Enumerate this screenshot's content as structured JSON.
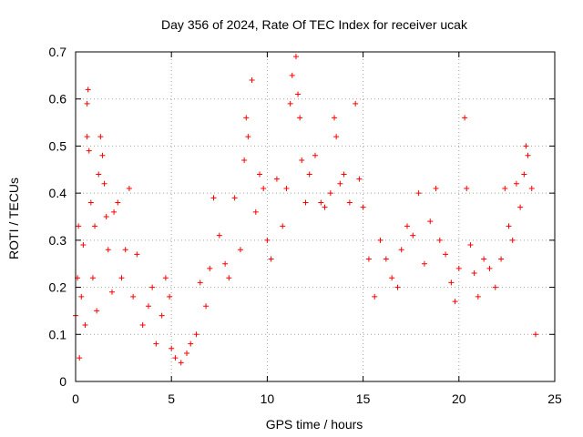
{
  "chart_data": {
    "type": "scatter",
    "title": "Day 356 of 2024, Rate Of TEC Index for receiver ucak",
    "xlabel": "GPS time / hours",
    "ylabel": "ROTI / TECUs",
    "xlim": [
      0,
      25
    ],
    "ylim": [
      0,
      0.7
    ],
    "x_ticks": [
      "0",
      "5",
      "10",
      "15",
      "20",
      "25"
    ],
    "y_ticks": [
      "0",
      "0.1",
      "0.2",
      "0.3",
      "0.4",
      "0.5",
      "0.6",
      "0.7"
    ],
    "grid": true,
    "marker": "+",
    "color": "#ff0000",
    "series": [
      {
        "points": [
          [
            0.0,
            0.14
          ],
          [
            0.1,
            0.22
          ],
          [
            0.15,
            0.33
          ],
          [
            0.2,
            0.05
          ],
          [
            0.3,
            0.18
          ],
          [
            0.4,
            0.29
          ],
          [
            0.5,
            0.12
          ],
          [
            0.6,
            0.52
          ],
          [
            0.6,
            0.59
          ],
          [
            0.65,
            0.62
          ],
          [
            0.7,
            0.49
          ],
          [
            0.8,
            0.38
          ],
          [
            0.9,
            0.22
          ],
          [
            1.0,
            0.33
          ],
          [
            1.1,
            0.15
          ],
          [
            1.2,
            0.44
          ],
          [
            1.3,
            0.52
          ],
          [
            1.4,
            0.48
          ],
          [
            1.5,
            0.42
          ],
          [
            1.6,
            0.35
          ],
          [
            1.7,
            0.28
          ],
          [
            1.9,
            0.19
          ],
          [
            2.0,
            0.36
          ],
          [
            2.2,
            0.38
          ],
          [
            2.4,
            0.22
          ],
          [
            2.6,
            0.28
          ],
          [
            2.8,
            0.41
          ],
          [
            3.0,
            0.18
          ],
          [
            3.2,
            0.27
          ],
          [
            3.5,
            0.12
          ],
          [
            3.8,
            0.16
          ],
          [
            4.0,
            0.2
          ],
          [
            4.2,
            0.08
          ],
          [
            4.5,
            0.14
          ],
          [
            4.7,
            0.22
          ],
          [
            4.9,
            0.18
          ],
          [
            5.0,
            0.07
          ],
          [
            5.2,
            0.05
          ],
          [
            5.5,
            0.04
          ],
          [
            5.8,
            0.06
          ],
          [
            6.0,
            0.08
          ],
          [
            6.3,
            0.1
          ],
          [
            6.5,
            0.21
          ],
          [
            6.8,
            0.16
          ],
          [
            7.0,
            0.24
          ],
          [
            7.2,
            0.39
          ],
          [
            7.5,
            0.31
          ],
          [
            7.8,
            0.25
          ],
          [
            8.0,
            0.22
          ],
          [
            8.3,
            0.39
          ],
          [
            8.6,
            0.28
          ],
          [
            8.8,
            0.47
          ],
          [
            8.9,
            0.56
          ],
          [
            9.0,
            0.52
          ],
          [
            9.2,
            0.64
          ],
          [
            9.4,
            0.36
          ],
          [
            9.6,
            0.44
          ],
          [
            9.8,
            0.41
          ],
          [
            10.0,
            0.3
          ],
          [
            10.2,
            0.26
          ],
          [
            10.5,
            0.43
          ],
          [
            10.8,
            0.33
          ],
          [
            11.0,
            0.41
          ],
          [
            11.2,
            0.59
          ],
          [
            11.3,
            0.65
          ],
          [
            11.5,
            0.69
          ],
          [
            11.6,
            0.61
          ],
          [
            11.7,
            0.56
          ],
          [
            11.8,
            0.47
          ],
          [
            12.0,
            0.38
          ],
          [
            12.2,
            0.44
          ],
          [
            12.5,
            0.48
          ],
          [
            12.8,
            0.38
          ],
          [
            13.0,
            0.37
          ],
          [
            13.3,
            0.4
          ],
          [
            13.5,
            0.56
          ],
          [
            13.6,
            0.52
          ],
          [
            13.8,
            0.42
          ],
          [
            14.0,
            0.44
          ],
          [
            14.3,
            0.38
          ],
          [
            14.6,
            0.59
          ],
          [
            14.8,
            0.43
          ],
          [
            15.0,
            0.37
          ],
          [
            15.3,
            0.26
          ],
          [
            15.6,
            0.18
          ],
          [
            15.9,
            0.3
          ],
          [
            16.2,
            0.26
          ],
          [
            16.5,
            0.22
          ],
          [
            16.8,
            0.2
          ],
          [
            17.0,
            0.28
          ],
          [
            17.3,
            0.33
          ],
          [
            17.6,
            0.31
          ],
          [
            17.9,
            0.4
          ],
          [
            18.2,
            0.25
          ],
          [
            18.5,
            0.34
          ],
          [
            18.8,
            0.41
          ],
          [
            19.0,
            0.3
          ],
          [
            19.3,
            0.27
          ],
          [
            19.6,
            0.21
          ],
          [
            19.8,
            0.17
          ],
          [
            20.0,
            0.24
          ],
          [
            20.3,
            0.56
          ],
          [
            20.4,
            0.41
          ],
          [
            20.6,
            0.29
          ],
          [
            20.8,
            0.23
          ],
          [
            21.0,
            0.18
          ],
          [
            21.3,
            0.26
          ],
          [
            21.6,
            0.24
          ],
          [
            21.9,
            0.2
          ],
          [
            22.2,
            0.26
          ],
          [
            22.4,
            0.41
          ],
          [
            22.6,
            0.33
          ],
          [
            22.8,
            0.3
          ],
          [
            23.0,
            0.42
          ],
          [
            23.2,
            0.37
          ],
          [
            23.4,
            0.44
          ],
          [
            23.5,
            0.5
          ],
          [
            23.6,
            0.48
          ],
          [
            23.8,
            0.41
          ],
          [
            24.0,
            0.1
          ]
        ]
      }
    ]
  }
}
